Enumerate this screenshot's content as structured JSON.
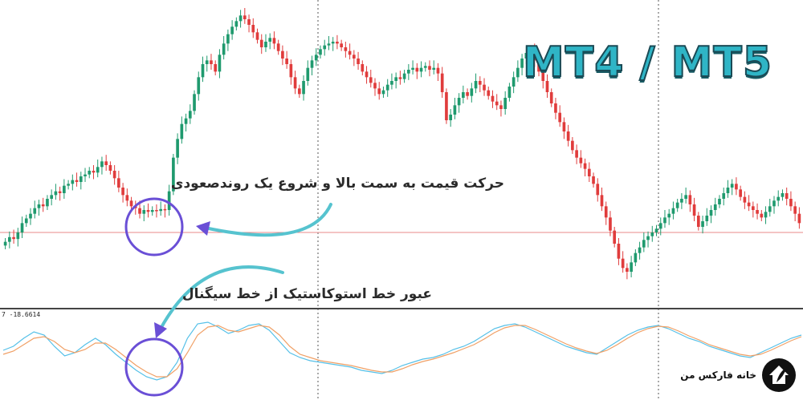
{
  "platform_badge": "MT4 / MT5",
  "annotations": {
    "price_move": "حرکت قیمت به سمت بالا و شروع یک روندصعودی",
    "stoch_cross": "عبور خط استوکاستیک از خط سیگنال"
  },
  "brand": {
    "name": "خانه فارکس من",
    "logo_icon": "rocket-house-logo-icon"
  },
  "colors": {
    "bull": "#1f9a6e",
    "bear": "#e03c3c",
    "stoch_main": "#55c0e8",
    "stoch_signal": "#f0a066",
    "arrow": "#56c3cf",
    "circle": "#6a4fd6",
    "level_line": "#e88a8a"
  },
  "chart_data": {
    "type": "candlestick",
    "price_series": [
      {
        "o": 46,
        "c": 50
      },
      {
        "o": 50,
        "c": 55
      },
      {
        "o": 55,
        "c": 53
      },
      {
        "o": 53,
        "c": 60
      },
      {
        "o": 60,
        "c": 70
      },
      {
        "o": 70,
        "c": 75
      },
      {
        "o": 75,
        "c": 80
      },
      {
        "o": 80,
        "c": 86
      },
      {
        "o": 86,
        "c": 90
      },
      {
        "o": 90,
        "c": 88
      },
      {
        "o": 88,
        "c": 96
      },
      {
        "o": 96,
        "c": 100
      },
      {
        "o": 100,
        "c": 104
      },
      {
        "o": 104,
        "c": 102
      },
      {
        "o": 102,
        "c": 110
      },
      {
        "o": 110,
        "c": 112
      },
      {
        "o": 112,
        "c": 116
      },
      {
        "o": 116,
        "c": 114
      },
      {
        "o": 114,
        "c": 120
      },
      {
        "o": 120,
        "c": 122
      },
      {
        "o": 122,
        "c": 126
      },
      {
        "o": 126,
        "c": 124
      },
      {
        "o": 124,
        "c": 130
      },
      {
        "o": 130,
        "c": 136
      },
      {
        "o": 136,
        "c": 132
      },
      {
        "o": 132,
        "c": 126
      },
      {
        "o": 126,
        "c": 118
      },
      {
        "o": 118,
        "c": 108
      },
      {
        "o": 108,
        "c": 100
      },
      {
        "o": 100,
        "c": 94
      },
      {
        "o": 94,
        "c": 88
      },
      {
        "o": 88,
        "c": 86
      },
      {
        "o": 86,
        "c": 80
      },
      {
        "o": 80,
        "c": 84
      },
      {
        "o": 84,
        "c": 82
      },
      {
        "o": 82,
        "c": 84
      },
      {
        "o": 84,
        "c": 83
      },
      {
        "o": 83,
        "c": 85
      },
      {
        "o": 85,
        "c": 84
      },
      {
        "o": 84,
        "c": 104
      },
      {
        "o": 104,
        "c": 140
      },
      {
        "o": 140,
        "c": 160
      },
      {
        "o": 160,
        "c": 176
      },
      {
        "o": 176,
        "c": 182
      },
      {
        "o": 182,
        "c": 190
      },
      {
        "o": 190,
        "c": 208
      },
      {
        "o": 208,
        "c": 226
      },
      {
        "o": 226,
        "c": 240
      },
      {
        "o": 240,
        "c": 244
      },
      {
        "o": 244,
        "c": 240
      },
      {
        "o": 240,
        "c": 232
      },
      {
        "o": 232,
        "c": 250
      },
      {
        "o": 250,
        "c": 262
      },
      {
        "o": 262,
        "c": 272
      },
      {
        "o": 272,
        "c": 280
      },
      {
        "o": 280,
        "c": 286
      },
      {
        "o": 286,
        "c": 292
      },
      {
        "o": 292,
        "c": 288
      },
      {
        "o": 288,
        "c": 282
      },
      {
        "o": 282,
        "c": 274
      },
      {
        "o": 274,
        "c": 266
      },
      {
        "o": 266,
        "c": 258
      },
      {
        "o": 258,
        "c": 264
      },
      {
        "o": 264,
        "c": 268
      },
      {
        "o": 268,
        "c": 262
      },
      {
        "o": 262,
        "c": 254
      },
      {
        "o": 254,
        "c": 246
      },
      {
        "o": 246,
        "c": 240
      },
      {
        "o": 240,
        "c": 226
      },
      {
        "o": 226,
        "c": 214
      },
      {
        "o": 214,
        "c": 208
      },
      {
        "o": 208,
        "c": 222
      },
      {
        "o": 222,
        "c": 236
      },
      {
        "o": 236,
        "c": 244
      },
      {
        "o": 244,
        "c": 250
      },
      {
        "o": 250,
        "c": 256
      },
      {
        "o": 256,
        "c": 260
      },
      {
        "o": 260,
        "c": 262
      },
      {
        "o": 262,
        "c": 264
      },
      {
        "o": 264,
        "c": 262
      },
      {
        "o": 262,
        "c": 258
      },
      {
        "o": 258,
        "c": 254
      },
      {
        "o": 254,
        "c": 250
      },
      {
        "o": 250,
        "c": 246
      },
      {
        "o": 246,
        "c": 240
      },
      {
        "o": 240,
        "c": 232
      },
      {
        "o": 232,
        "c": 226
      },
      {
        "o": 226,
        "c": 220
      },
      {
        "o": 220,
        "c": 214
      },
      {
        "o": 214,
        "c": 208
      },
      {
        "o": 208,
        "c": 212
      },
      {
        "o": 212,
        "c": 218
      },
      {
        "o": 218,
        "c": 222
      },
      {
        "o": 222,
        "c": 226
      },
      {
        "o": 226,
        "c": 224
      },
      {
        "o": 224,
        "c": 230
      },
      {
        "o": 230,
        "c": 234
      },
      {
        "o": 234,
        "c": 236
      },
      {
        "o": 236,
        "c": 232
      },
      {
        "o": 232,
        "c": 236
      },
      {
        "o": 236,
        "c": 238
      },
      {
        "o": 238,
        "c": 234
      },
      {
        "o": 234,
        "c": 236
      },
      {
        "o": 236,
        "c": 230
      },
      {
        "o": 230,
        "c": 210
      },
      {
        "o": 210,
        "c": 180
      },
      {
        "o": 180,
        "c": 186
      },
      {
        "o": 186,
        "c": 196
      },
      {
        "o": 196,
        "c": 204
      },
      {
        "o": 204,
        "c": 210
      },
      {
        "o": 210,
        "c": 206
      },
      {
        "o": 206,
        "c": 214
      },
      {
        "o": 214,
        "c": 222
      },
      {
        "o": 222,
        "c": 218
      },
      {
        "o": 218,
        "c": 212
      },
      {
        "o": 212,
        "c": 206
      },
      {
        "o": 206,
        "c": 200
      },
      {
        "o": 200,
        "c": 196
      },
      {
        "o": 196,
        "c": 192
      },
      {
        "o": 192,
        "c": 204
      },
      {
        "o": 204,
        "c": 216
      },
      {
        "o": 216,
        "c": 226
      },
      {
        "o": 226,
        "c": 236
      },
      {
        "o": 236,
        "c": 246
      },
      {
        "o": 246,
        "c": 252
      },
      {
        "o": 252,
        "c": 256
      },
      {
        "o": 256,
        "c": 244
      },
      {
        "o": 244,
        "c": 232
      },
      {
        "o": 232,
        "c": 222
      },
      {
        "o": 222,
        "c": 210
      },
      {
        "o": 210,
        "c": 198
      },
      {
        "o": 198,
        "c": 188
      },
      {
        "o": 188,
        "c": 178
      },
      {
        "o": 178,
        "c": 168
      },
      {
        "o": 168,
        "c": 158
      },
      {
        "o": 158,
        "c": 148
      },
      {
        "o": 148,
        "c": 140
      },
      {
        "o": 140,
        "c": 134
      },
      {
        "o": 134,
        "c": 128
      },
      {
        "o": 128,
        "c": 120
      },
      {
        "o": 120,
        "c": 112
      },
      {
        "o": 112,
        "c": 100
      },
      {
        "o": 100,
        "c": 88
      },
      {
        "o": 88,
        "c": 76
      },
      {
        "o": 76,
        "c": 62
      },
      {
        "o": 62,
        "c": 48
      },
      {
        "o": 48,
        "c": 32
      },
      {
        "o": 32,
        "c": 22
      },
      {
        "o": 22,
        "c": 18
      },
      {
        "o": 18,
        "c": 28
      },
      {
        "o": 28,
        "c": 38
      },
      {
        "o": 38,
        "c": 44
      },
      {
        "o": 44,
        "c": 52
      },
      {
        "o": 52,
        "c": 56
      },
      {
        "o": 56,
        "c": 60
      },
      {
        "o": 60,
        "c": 64
      },
      {
        "o": 64,
        "c": 70
      },
      {
        "o": 70,
        "c": 76
      },
      {
        "o": 76,
        "c": 80
      },
      {
        "o": 80,
        "c": 86
      },
      {
        "o": 86,
        "c": 92
      },
      {
        "o": 92,
        "c": 96
      },
      {
        "o": 96,
        "c": 100
      },
      {
        "o": 100,
        "c": 90
      },
      {
        "o": 90,
        "c": 78
      },
      {
        "o": 78,
        "c": 66
      },
      {
        "o": 66,
        "c": 72
      },
      {
        "o": 72,
        "c": 78
      },
      {
        "o": 78,
        "c": 84
      },
      {
        "o": 84,
        "c": 90
      },
      {
        "o": 90,
        "c": 96
      },
      {
        "o": 96,
        "c": 102
      },
      {
        "o": 102,
        "c": 108
      },
      {
        "o": 108,
        "c": 112
      },
      {
        "o": 112,
        "c": 106
      },
      {
        "o": 106,
        "c": 98
      },
      {
        "o": 98,
        "c": 92
      },
      {
        "o": 92,
        "c": 88
      },
      {
        "o": 88,
        "c": 84
      },
      {
        "o": 84,
        "c": 80
      },
      {
        "o": 80,
        "c": 76
      },
      {
        "o": 76,
        "c": 82
      },
      {
        "o": 82,
        "c": 88
      },
      {
        "o": 88,
        "c": 94
      },
      {
        "o": 94,
        "c": 98
      },
      {
        "o": 98,
        "c": 102
      },
      {
        "o": 102,
        "c": 96
      },
      {
        "o": 96,
        "c": 88
      },
      {
        "o": 88,
        "c": 80
      },
      {
        "o": 80,
        "c": 70
      }
    ],
    "support_level": 60,
    "oscillator": {
      "label": "7 -18.6614",
      "main": [
        55,
        60,
        70,
        78,
        74,
        60,
        48,
        52,
        62,
        70,
        62,
        50,
        40,
        30,
        22,
        18,
        22,
        40,
        70,
        88,
        90,
        84,
        76,
        80,
        86,
        88,
        80,
        66,
        52,
        46,
        42,
        40,
        38,
        36,
        34,
        30,
        28,
        26,
        30,
        36,
        40,
        44,
        46,
        50,
        56,
        60,
        66,
        74,
        82,
        86,
        88,
        84,
        78,
        72,
        66,
        60,
        56,
        52,
        50,
        58,
        66,
        74,
        80,
        84,
        86,
        82,
        76,
        70,
        66,
        60,
        56,
        52,
        48,
        46,
        52,
        58,
        64,
        70,
        74
      ],
      "signal": [
        50,
        54,
        62,
        70,
        72,
        66,
        56,
        52,
        56,
        64,
        64,
        56,
        46,
        36,
        28,
        22,
        22,
        32,
        52,
        74,
        84,
        86,
        80,
        78,
        82,
        86,
        84,
        74,
        60,
        50,
        46,
        42,
        40,
        38,
        36,
        33,
        30,
        28,
        28,
        32,
        37,
        41,
        44,
        48,
        52,
        57,
        62,
        69,
        77,
        83,
        86,
        86,
        81,
        75,
        69,
        63,
        58,
        54,
        51,
        55,
        62,
        70,
        77,
        82,
        85,
        84,
        79,
        73,
        68,
        62,
        58,
        54,
        50,
        48,
        50,
        55,
        61,
        67,
        72
      ]
    }
  }
}
